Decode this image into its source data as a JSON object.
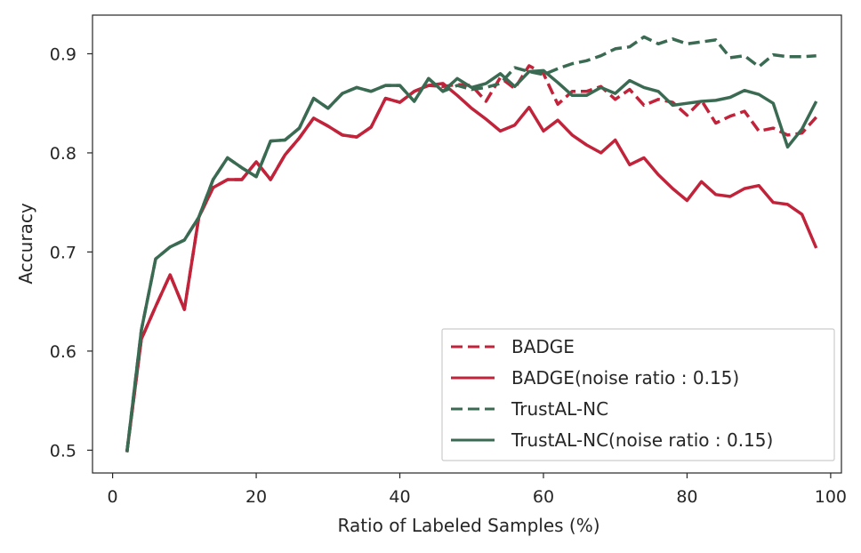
{
  "chart_data": {
    "type": "line",
    "title": "",
    "xlabel": "Ratio of Labeled Samples (%)",
    "ylabel": "Accuracy",
    "xlim": [
      -2.8,
      101.5
    ],
    "ylim": [
      0.477,
      0.939
    ],
    "xticks": [
      0,
      20,
      40,
      60,
      80,
      100
    ],
    "yticks": [
      0.5,
      0.6,
      0.7,
      0.8,
      0.9
    ],
    "xtick_labels": [
      "0",
      "20",
      "40",
      "60",
      "80",
      "100"
    ],
    "ytick_labels": [
      "0.5",
      "0.6",
      "0.7",
      "0.8",
      "0.9"
    ],
    "grid": false,
    "legend_position": "lower-right",
    "x": [
      2,
      4,
      6,
      8,
      10,
      12,
      14,
      16,
      18,
      20,
      22,
      24,
      26,
      28,
      30,
      32,
      34,
      36,
      38,
      40,
      42,
      44,
      46,
      48,
      50,
      52,
      54,
      56,
      58,
      60,
      62,
      64,
      66,
      68,
      70,
      72,
      74,
      76,
      78,
      80,
      82,
      84,
      86,
      88,
      90,
      92,
      94,
      96,
      98
    ],
    "series": [
      {
        "name": "BADGE",
        "color": "#c0233a",
        "dash": "dashed",
        "values": [
          0.498,
          0.612,
          0.645,
          0.677,
          0.642,
          0.735,
          0.765,
          0.773,
          0.773,
          0.791,
          0.773,
          0.798,
          0.815,
          0.835,
          0.827,
          0.818,
          0.816,
          0.826,
          0.855,
          0.851,
          0.862,
          0.868,
          0.867,
          0.869,
          0.868,
          0.852,
          0.876,
          0.865,
          0.888,
          0.88,
          0.849,
          0.862,
          0.862,
          0.867,
          0.854,
          0.864,
          0.848,
          0.854,
          0.851,
          0.838,
          0.853,
          0.83,
          0.837,
          0.842,
          0.822,
          0.825,
          0.818,
          0.82,
          0.836
        ]
      },
      {
        "name": "BADGE(noise ratio : 0.15)",
        "color": "#c0233a",
        "dash": "solid",
        "values": [
          0.498,
          0.612,
          0.645,
          0.677,
          0.642,
          0.735,
          0.765,
          0.773,
          0.773,
          0.791,
          0.773,
          0.798,
          0.815,
          0.835,
          0.827,
          0.818,
          0.816,
          0.826,
          0.855,
          0.851,
          0.862,
          0.868,
          0.87,
          0.858,
          0.845,
          0.834,
          0.822,
          0.828,
          0.846,
          0.822,
          0.833,
          0.818,
          0.808,
          0.8,
          0.813,
          0.788,
          0.795,
          0.778,
          0.764,
          0.752,
          0.771,
          0.758,
          0.756,
          0.764,
          0.767,
          0.75,
          0.748,
          0.738,
          0.704
        ]
      },
      {
        "name": "TrustAL-NC",
        "color": "#3a6b52",
        "dash": "dashed",
        "values": [
          0.498,
          0.621,
          0.693,
          0.705,
          0.712,
          0.735,
          0.773,
          0.795,
          0.785,
          0.776,
          0.812,
          0.813,
          0.825,
          0.855,
          0.845,
          0.86,
          0.866,
          0.862,
          0.868,
          0.868,
          0.852,
          0.875,
          0.862,
          0.868,
          0.864,
          0.866,
          0.87,
          0.886,
          0.882,
          0.879,
          0.885,
          0.89,
          0.893,
          0.898,
          0.905,
          0.907,
          0.917,
          0.91,
          0.915,
          0.91,
          0.912,
          0.914,
          0.896,
          0.898,
          0.887,
          0.899,
          0.897,
          0.897,
          0.898
        ]
      },
      {
        "name": "TrustAL-NC(noise ratio : 0.15)",
        "color": "#3a6b52",
        "dash": "solid",
        "values": [
          0.498,
          0.621,
          0.693,
          0.705,
          0.712,
          0.735,
          0.773,
          0.795,
          0.785,
          0.776,
          0.812,
          0.813,
          0.825,
          0.855,
          0.845,
          0.86,
          0.866,
          0.862,
          0.868,
          0.868,
          0.852,
          0.875,
          0.862,
          0.875,
          0.866,
          0.87,
          0.88,
          0.867,
          0.882,
          0.883,
          0.871,
          0.858,
          0.858,
          0.866,
          0.86,
          0.873,
          0.866,
          0.862,
          0.848,
          0.85,
          0.852,
          0.853,
          0.856,
          0.863,
          0.859,
          0.85,
          0.806,
          0.824,
          0.852
        ]
      }
    ]
  }
}
